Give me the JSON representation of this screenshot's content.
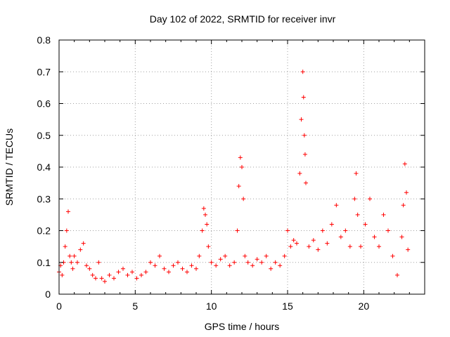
{
  "chart_data": {
    "type": "scatter",
    "title": "Day 102 of 2022, SRMTID for receiver invr",
    "xlabel": "GPS time / hours",
    "ylabel": "SRMTID / TECUs",
    "xlim": [
      0,
      24
    ],
    "ylim": [
      0,
      0.8
    ],
    "xticks": [
      0,
      5,
      10,
      15,
      20
    ],
    "xtick_labels": [
      "0",
      "5",
      "10",
      "15",
      "20"
    ],
    "yticks": [
      0,
      0.1,
      0.2,
      0.3,
      0.4,
      0.5,
      0.6,
      0.7,
      0.8
    ],
    "ytick_labels": [
      "0",
      "0.1",
      "0.2",
      "0.3",
      "0.4",
      "0.5",
      "0.6",
      "0.7",
      "0.8"
    ],
    "grid": true,
    "marker": "+",
    "series": [
      {
        "name": "SRMTID",
        "color": "#ff0000",
        "x": [
          0.0,
          0.1,
          0.2,
          0.3,
          0.4,
          0.5,
          0.6,
          0.7,
          0.8,
          0.9,
          1.0,
          1.2,
          1.4,
          1.6,
          1.8,
          2.0,
          2.2,
          2.4,
          2.6,
          2.8,
          3.0,
          3.3,
          3.6,
          3.9,
          4.2,
          4.5,
          4.8,
          5.1,
          5.4,
          5.7,
          6.0,
          6.3,
          6.6,
          6.9,
          7.2,
          7.5,
          7.8,
          8.1,
          8.4,
          8.7,
          9.0,
          9.2,
          9.4,
          9.5,
          9.6,
          9.7,
          9.8,
          10.0,
          10.3,
          10.6,
          10.9,
          11.2,
          11.5,
          11.7,
          11.8,
          11.9,
          12.0,
          12.1,
          12.2,
          12.4,
          12.7,
          13.0,
          13.3,
          13.6,
          13.9,
          14.2,
          14.5,
          14.8,
          15.0,
          15.2,
          15.4,
          15.6,
          15.8,
          15.9,
          16.0,
          16.05,
          16.1,
          16.15,
          16.2,
          16.4,
          16.7,
          17.0,
          17.3,
          17.6,
          17.9,
          18.2,
          18.5,
          18.8,
          19.1,
          19.4,
          19.5,
          19.6,
          19.8,
          20.1,
          20.4,
          20.7,
          21.0,
          21.3,
          21.6,
          21.9,
          22.2,
          22.5,
          22.6,
          22.7,
          22.8,
          22.9
        ],
        "y": [
          0.07,
          0.09,
          0.06,
          0.1,
          0.15,
          0.2,
          0.26,
          0.12,
          0.1,
          0.08,
          0.12,
          0.1,
          0.14,
          0.16,
          0.09,
          0.08,
          0.06,
          0.05,
          0.1,
          0.05,
          0.04,
          0.06,
          0.05,
          0.07,
          0.08,
          0.06,
          0.07,
          0.05,
          0.06,
          0.07,
          0.1,
          0.09,
          0.12,
          0.08,
          0.07,
          0.09,
          0.1,
          0.08,
          0.07,
          0.09,
          0.08,
          0.12,
          0.2,
          0.27,
          0.25,
          0.22,
          0.15,
          0.1,
          0.09,
          0.11,
          0.12,
          0.09,
          0.1,
          0.2,
          0.34,
          0.43,
          0.4,
          0.3,
          0.12,
          0.1,
          0.09,
          0.11,
          0.1,
          0.12,
          0.08,
          0.1,
          0.09,
          0.12,
          0.2,
          0.15,
          0.17,
          0.16,
          0.38,
          0.55,
          0.7,
          0.62,
          0.5,
          0.44,
          0.35,
          0.15,
          0.17,
          0.14,
          0.2,
          0.16,
          0.22,
          0.28,
          0.18,
          0.2,
          0.15,
          0.3,
          0.38,
          0.25,
          0.15,
          0.22,
          0.3,
          0.18,
          0.15,
          0.25,
          0.2,
          0.12,
          0.06,
          0.18,
          0.28,
          0.41,
          0.32,
          0.14
        ]
      }
    ]
  }
}
